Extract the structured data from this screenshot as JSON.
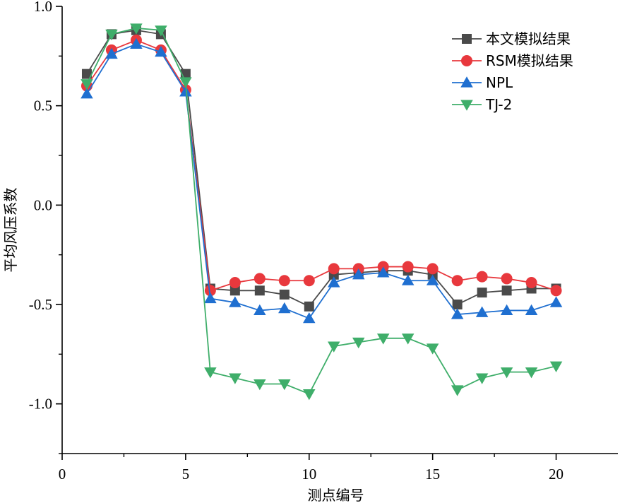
{
  "chart_data": {
    "type": "line",
    "title": "",
    "xlabel": "测点编号",
    "ylabel": "平均风压系数",
    "xlim": [
      0,
      22.5
    ],
    "ylim": [
      -1.25,
      1.0
    ],
    "x_ticks": [
      0,
      5,
      10,
      15,
      20
    ],
    "x_tick_labels": [
      "0",
      "5",
      "10",
      "15",
      "20"
    ],
    "y_ticks": [
      1.0,
      0.5,
      0.0,
      -0.5,
      -1.0
    ],
    "y_tick_labels": [
      "1.0",
      "0.5",
      "0.0",
      "-0.5",
      "-1.0"
    ],
    "grid": false,
    "legend_position": "top-right",
    "x": [
      1,
      2,
      3,
      4,
      5,
      6,
      7,
      8,
      9,
      10,
      11,
      12,
      13,
      14,
      15,
      16,
      17,
      18,
      19,
      20
    ],
    "series": [
      {
        "name": "本文模拟结果",
        "color": "#4a4a4a",
        "marker": "square",
        "values": [
          0.66,
          0.86,
          0.88,
          0.86,
          0.66,
          -0.42,
          -0.43,
          -0.43,
          -0.45,
          -0.51,
          -0.35,
          -0.34,
          -0.33,
          -0.33,
          -0.35,
          -0.5,
          -0.44,
          -0.43,
          -0.42,
          -0.42
        ]
      },
      {
        "name": "RSM模拟结果",
        "color": "#e8383d",
        "marker": "circle",
        "values": [
          0.6,
          0.78,
          0.83,
          0.78,
          0.58,
          -0.43,
          -0.39,
          -0.37,
          -0.38,
          -0.38,
          -0.32,
          -0.32,
          -0.31,
          -0.31,
          -0.32,
          -0.38,
          -0.36,
          -0.37,
          -0.39,
          -0.43
        ]
      },
      {
        "name": "NPL",
        "color": "#1f6fd0",
        "marker": "triangle-up",
        "values": [
          0.56,
          0.76,
          0.81,
          0.77,
          0.57,
          -0.47,
          -0.49,
          -0.53,
          -0.52,
          -0.57,
          -0.39,
          -0.35,
          -0.34,
          -0.38,
          -0.38,
          -0.55,
          -0.54,
          -0.53,
          -0.53,
          -0.49
        ]
      },
      {
        "name": "TJ-2",
        "color": "#3fae6a",
        "marker": "triangle-down",
        "values": [
          0.61,
          0.86,
          0.89,
          0.88,
          0.62,
          -0.84,
          -0.87,
          -0.9,
          -0.9,
          -0.95,
          -0.71,
          -0.69,
          -0.67,
          -0.67,
          -0.72,
          -0.93,
          -0.87,
          -0.84,
          -0.84,
          -0.81
        ]
      }
    ]
  }
}
